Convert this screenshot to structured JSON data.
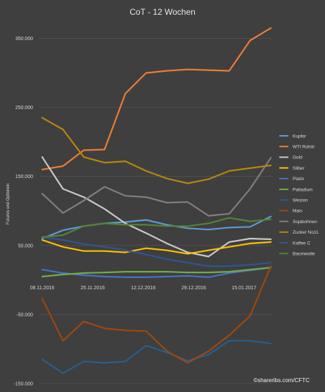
{
  "chart_data": {
    "type": "line",
    "title": "CoT - 12 Wochen",
    "xlabel": "",
    "ylabel": "Futures und Optionen",
    "ylim": [
      -150000,
      375000
    ],
    "yticks": [
      "-150.000",
      "-50.000",
      "50.000",
      "150.000",
      "250.000",
      "350.000"
    ],
    "ytick_values": [
      -150000,
      -50000,
      50000,
      150000,
      250000,
      350000
    ],
    "x": [
      "08.11.2016",
      "15.11.2016",
      "22.11.2016",
      "29.11.2016",
      "06.12.2016",
      "13.12.2016",
      "20.12.2016",
      "27.12.2016",
      "03.01.2017",
      "10.01.2017",
      "17.01.2017",
      "24.01.2017"
    ],
    "xticks": [
      "08.11.2016",
      "25.11.2016",
      "12.12.2016",
      "29.12.2016",
      "15.01.2017"
    ],
    "xtick_positions": [
      0,
      2.43,
      4.86,
      7.29,
      9.71
    ],
    "grid": true,
    "legend_position": "right",
    "series": [
      {
        "name": "Kupfer",
        "color": "#5b9bd5",
        "values": [
          60000,
          72000,
          78000,
          82000,
          84000,
          87000,
          80000,
          75000,
          73000,
          76000,
          77000,
          92000
        ]
      },
      {
        "name": "WTI Rohöl",
        "color": "#ed7d31",
        "values": [
          160000,
          165000,
          188000,
          189000,
          270000,
          300000,
          303000,
          305000,
          304000,
          303000,
          347000,
          365000
        ]
      },
      {
        "name": "Gold",
        "color": "#c9c9c9",
        "values": [
          178000,
          132000,
          120000,
          103000,
          82000,
          68000,
          53000,
          40000,
          34000,
          55000,
          60000,
          59000
        ]
      },
      {
        "name": "Silber",
        "color": "#ffc000",
        "values": [
          58000,
          48000,
          42000,
          42000,
          40000,
          46000,
          43000,
          38000,
          43000,
          48000,
          53000,
          55000
        ]
      },
      {
        "name": "Platin",
        "color": "#4472c4",
        "values": [
          15000,
          10000,
          7000,
          5000,
          4000,
          4000,
          5000,
          6000,
          4000,
          10000,
          14000,
          18000
        ]
      },
      {
        "name": "Palladium",
        "color": "#70ad47",
        "values": [
          5000,
          8000,
          10000,
          11000,
          12000,
          12000,
          12000,
          11000,
          11000,
          12000,
          15000,
          18000
        ]
      },
      {
        "name": "Weizen",
        "color": "#255e91",
        "values": [
          -115000,
          -135000,
          -118000,
          -120000,
          -118000,
          -95000,
          -105000,
          -117000,
          -108000,
          -88000,
          -88000,
          -92000
        ]
      },
      {
        "name": "Mais",
        "color": "#9e480e",
        "values": [
          -27000,
          -88000,
          -60000,
          -70000,
          -73000,
          -74000,
          -103000,
          -120000,
          -103000,
          -80000,
          -52000,
          20000
        ]
      },
      {
        "name": "Sojabohnen",
        "color": "#7f7f7f",
        "values": [
          125000,
          97000,
          115000,
          135000,
          122000,
          120000,
          112000,
          113000,
          93000,
          96000,
          132000,
          177000
        ]
      },
      {
        "name": "Zucker No11",
        "color": "#b8860b",
        "values": [
          235000,
          218000,
          178000,
          170000,
          172000,
          158000,
          147000,
          140000,
          146000,
          158000,
          162000,
          166000
        ]
      },
      {
        "name": "Kaffee C",
        "color": "#2f5597",
        "values": [
          62000,
          58000,
          52000,
          48000,
          43000,
          37000,
          30000,
          25000,
          20000,
          20000,
          22000,
          25000
        ]
      },
      {
        "name": "Baumwolle",
        "color": "#548235",
        "values": [
          62000,
          65000,
          78000,
          82000,
          80000,
          80000,
          78000,
          78000,
          82000,
          90000,
          85000,
          88000
        ]
      }
    ]
  },
  "credit": "©shareribs.com/CFTC"
}
